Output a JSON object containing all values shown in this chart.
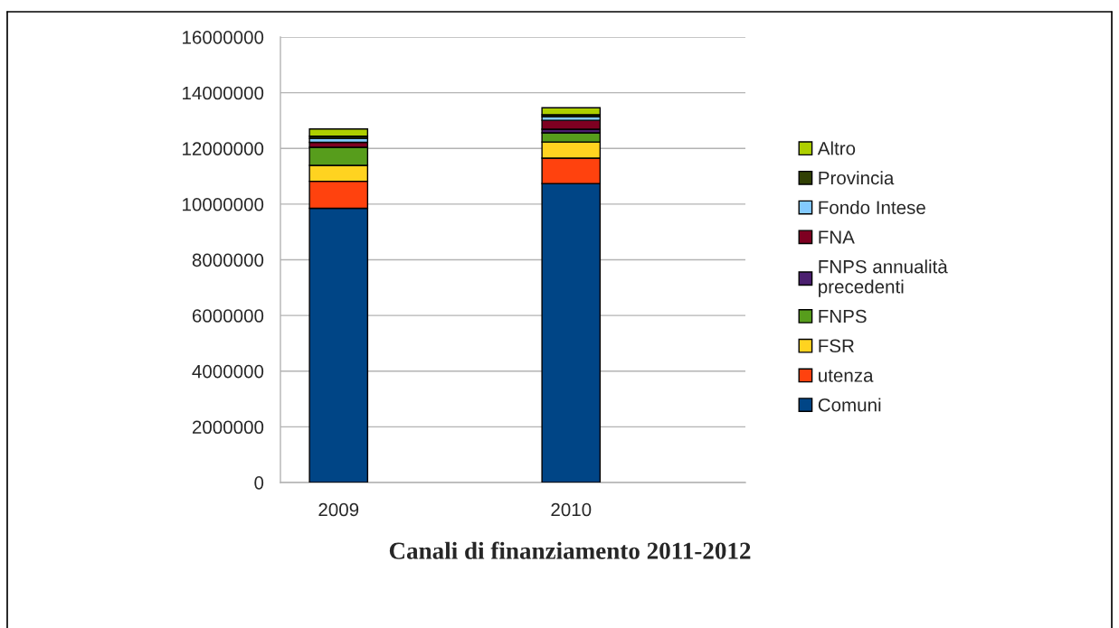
{
  "chart_data": {
    "type": "bar",
    "stacked": true,
    "title": "Canali di finanziamento 2011-2012",
    "categories": [
      "2009",
      null,
      "2010",
      null
    ],
    "series": [
      {
        "name": "Comuni",
        "color": "#004586",
        "values": [
          9850000,
          null,
          10740000,
          null
        ]
      },
      {
        "name": "utenza",
        "color": "#ff420e",
        "values": [
          970000,
          null,
          910000,
          null
        ]
      },
      {
        "name": "FSR",
        "color": "#ffd320",
        "values": [
          570000,
          null,
          580000,
          null
        ]
      },
      {
        "name": "FNPS",
        "color": "#579d1c",
        "values": [
          650000,
          null,
          330000,
          null
        ]
      },
      {
        "name": "FNPS annualità\nprecedenti",
        "color": "#4b1f6f",
        "values": [
          null,
          null,
          130000,
          null
        ]
      },
      {
        "name": "FNA",
        "color": "#7e0021",
        "values": [
          180000,
          null,
          320000,
          null
        ]
      },
      {
        "name": "Fondo Intese",
        "color": "#83caff",
        "values": [
          140000,
          null,
          130000,
          null
        ]
      },
      {
        "name": "Provincia",
        "color": "#314004",
        "values": [
          80000,
          null,
          70000,
          null
        ]
      },
      {
        "name": "Altro",
        "color": "#aecf00",
        "values": [
          260000,
          null,
          250000,
          null
        ]
      }
    ],
    "ylim": [
      0,
      16000000
    ],
    "yticks": [
      0,
      2000000,
      4000000,
      6000000,
      8000000,
      10000000,
      12000000,
      14000000,
      16000000
    ],
    "grid": "y",
    "legend": "right"
  }
}
